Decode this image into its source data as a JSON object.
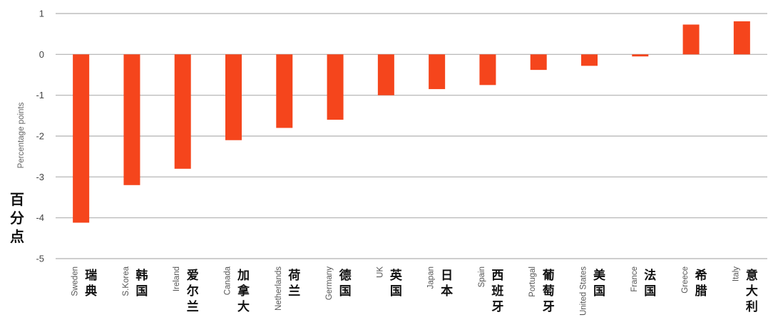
{
  "chart_data": {
    "type": "bar",
    "categories": [
      "Sweden",
      "S.Korea",
      "Ireland",
      "Canada",
      "Netherlands",
      "Germany",
      "UK",
      "Japan",
      "Spain",
      "Portugal",
      "United States",
      "France",
      "Greece",
      "Italy"
    ],
    "categories_zh": [
      "瑞典",
      "韩国",
      "爱尔兰",
      "加拿大",
      "荷兰",
      "德国",
      "英国",
      "日本",
      "西班牙",
      "葡萄牙",
      "美国",
      "法国",
      "希腊",
      "意大利"
    ],
    "values": [
      -4.12,
      -3.2,
      -2.8,
      -2.1,
      -1.8,
      -1.6,
      -1.0,
      -0.85,
      -0.75,
      -0.38,
      -0.28,
      -0.05,
      0.73,
      0.81
    ],
    "ylabel": "Percentage points",
    "ylabel_zh": "百分点",
    "ylim": [
      -5,
      1
    ],
    "yticks": [
      1,
      0,
      -1,
      -2,
      -3,
      -4,
      -5
    ],
    "grid": true,
    "legend": "none",
    "bar_color": "#f5451c",
    "grid_color": "#b0b0b0"
  }
}
